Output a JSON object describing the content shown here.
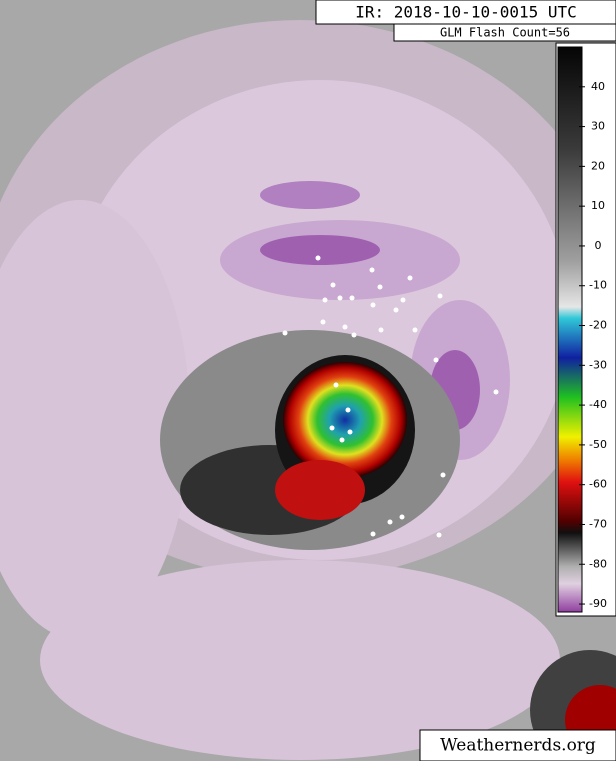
{
  "header": {
    "title": "IR: 2018-10-10-0015 UTC",
    "subtitle": "GLM Flash Count=56"
  },
  "colorbar": {
    "lim": [
      -92,
      50
    ],
    "ticks": [
      40,
      30,
      20,
      10,
      0,
      -10,
      -20,
      -30,
      -40,
      -50,
      -60,
      -70,
      -80,
      -90
    ]
  },
  "footer": {
    "credit": "Weathernerds.org"
  }
}
